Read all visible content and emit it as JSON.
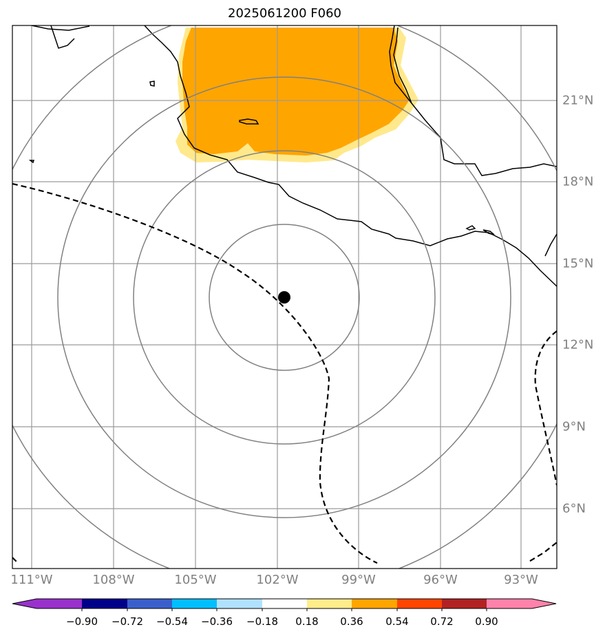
{
  "title": "2025061200 F060",
  "map": {
    "region": "Eastern Pacific off southern Mexico",
    "center_marker": {
      "lon": -101.8,
      "lat": 13.75,
      "color": "#000000"
    },
    "range_rings": "concentric circles around center marker",
    "dashed_contour": "black dashed line",
    "filled_field_color": "#FFA500",
    "filled_field_edge_color": "#FFE98C",
    "gridlines": true,
    "coastlines": true
  },
  "lon_labels": [
    "111°W",
    "108°W",
    "105°W",
    "102°W",
    "99°W",
    "96°W",
    "93°W"
  ],
  "lat_labels": [
    "21°N",
    "18°N",
    "15°N",
    "12°N",
    "9°N",
    "6°N"
  ],
  "colorbar": {
    "ticks": [
      "−0.90",
      "−0.72",
      "−0.54",
      "−0.36",
      "−0.18",
      "0.18",
      "0.36",
      "0.54",
      "0.72",
      "0.90"
    ],
    "colors": [
      "#9932CC",
      "#00008B",
      "#3A5FCD",
      "#00BFFF",
      "#B0E2FF",
      "#FFFFFF",
      "#FFEC8B",
      "#FFA500",
      "#FF4500",
      "#B22222",
      "#FF82AB"
    ],
    "extend": "both"
  }
}
